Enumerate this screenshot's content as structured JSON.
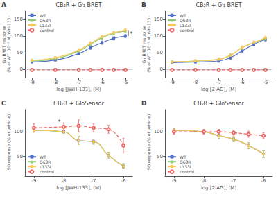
{
  "chart_data": [
    {
      "type": "line",
      "panel_label": "A",
      "title": "CB₂R + Gᴵ₁ BRET",
      "xlabel": "log [JWH-133], (M)",
      "ylabel": "Gᴵ₁ BRET response\n(% of WT, 10⁻⁵ M JWH-133)",
      "x": [
        -9,
        -8,
        -7,
        -6.5,
        -6,
        -5.5,
        -5
      ],
      "xlim": [
        -9.3,
        -4.7
      ],
      "xticks": [
        -9,
        -8,
        -7,
        -6,
        -5
      ],
      "ylim": [
        -25,
        175
      ],
      "yticks": [
        0,
        50,
        100,
        150
      ],
      "grid": false,
      "legend": "upper left",
      "hline": 0,
      "series": [
        {
          "name": "WT",
          "marker": "square",
          "line_style": "solid",
          "values": [
            22,
            28,
            47,
            65,
            80,
            93,
            100
          ],
          "errors": [
            3,
            3,
            4,
            5,
            5,
            5,
            5
          ]
        },
        {
          "name": "Q63R",
          "marker": "triangle",
          "line_style": "solid",
          "values": [
            25,
            32,
            55,
            75,
            95,
            108,
            115
          ],
          "errors": [
            4,
            3,
            4,
            5,
            5,
            5,
            5
          ]
        },
        {
          "name": "L133I",
          "marker": "circle",
          "line_style": "solid",
          "values": [
            27,
            35,
            58,
            78,
            98,
            110,
            118
          ],
          "errors": [
            4,
            3,
            4,
            5,
            5,
            5,
            5
          ]
        },
        {
          "name": "control",
          "marker": "open circle",
          "line_style": "dashed",
          "values": [
            -2,
            -2,
            -2,
            -2,
            -2,
            -2,
            -2
          ],
          "errors": [
            2,
            2,
            2,
            2,
            2,
            2,
            2
          ]
        }
      ],
      "annotations": [
        {
          "text": "*",
          "x": -4.82,
          "y": 107
        }
      ],
      "brackets": [
        {
          "x": -4.88,
          "y": [
            100,
            118
          ]
        }
      ]
    },
    {
      "type": "line",
      "panel_label": "B",
      "title": "CB₂R + Gᴵ₁ BRET",
      "xlabel": "log [2-AG], (M)",
      "ylabel": "Gᴵ₁ BRET response\n(% of WT, 10⁻⁵ M JWH-133)",
      "x": [
        -9,
        -8,
        -7,
        -6.5,
        -6,
        -5.5,
        -5
      ],
      "xlim": [
        -9.3,
        -4.7
      ],
      "xticks": [
        -9,
        -8,
        -7,
        -6,
        -5
      ],
      "ylim": [
        -25,
        175
      ],
      "yticks": [
        0,
        50,
        100,
        150
      ],
      "grid": false,
      "legend": "upper left",
      "hline": 0,
      "series": [
        {
          "name": "WT",
          "marker": "square",
          "line_style": "solid",
          "values": [
            20,
            22,
            25,
            35,
            55,
            75,
            90
          ],
          "errors": [
            3,
            3,
            4,
            5,
            5,
            5,
            5
          ]
        },
        {
          "name": "Q63R",
          "marker": "triangle",
          "line_style": "solid",
          "values": [
            22,
            25,
            30,
            42,
            65,
            80,
            92
          ],
          "errors": [
            4,
            4,
            4,
            5,
            5,
            5,
            5
          ]
        },
        {
          "name": "L133I",
          "marker": "circle",
          "line_style": "solid",
          "values": [
            22,
            25,
            30,
            42,
            65,
            80,
            95
          ],
          "errors": [
            4,
            4,
            4,
            5,
            5,
            5,
            5
          ]
        },
        {
          "name": "control",
          "marker": "open circle",
          "line_style": "dashed",
          "values": [
            -2,
            -2,
            -2,
            -2,
            -2,
            -2,
            -2
          ],
          "errors": [
            2,
            2,
            2,
            2,
            2,
            2,
            2
          ]
        }
      ]
    },
    {
      "type": "line",
      "panel_label": "C",
      "title": "CB₂R + GloSensor",
      "xlabel": "log [JWH-133], (M)",
      "ylabel": "ISO response (% of vehicle)",
      "x": [
        -9,
        -8,
        -7.5,
        -7,
        -6.5,
        -6
      ],
      "xlim": [
        -9.3,
        -5.7
      ],
      "xticks": [
        -9,
        -8,
        -7,
        -6
      ],
      "ylim": [
        10,
        145
      ],
      "yticks": [
        50,
        100
      ],
      "grid": false,
      "legend": "lower left",
      "series": [
        {
          "name": "WT",
          "marker": "square",
          "line_style": "solid",
          "values": [
            103,
            100,
            82,
            80,
            52,
            30
          ],
          "errors": [
            4,
            3,
            8,
            5,
            6,
            5
          ]
        },
        {
          "name": "Q63R",
          "marker": "triangle",
          "line_style": "solid",
          "values": [
            103,
            100,
            82,
            80,
            52,
            30
          ],
          "errors": [
            4,
            3,
            8,
            5,
            6,
            5
          ]
        },
        {
          "name": "L133I",
          "marker": "circle",
          "line_style": "solid",
          "values": [
            103,
            100,
            82,
            80,
            52,
            30
          ],
          "errors": [
            4,
            3,
            8,
            5,
            6,
            5
          ]
        },
        {
          "name": "control",
          "marker": "open circle",
          "line_style": "dashed",
          "values": [
            108,
            110,
            112,
            108,
            105,
            72
          ],
          "errors": [
            8,
            8,
            12,
            8,
            8,
            15
          ]
        }
      ],
      "annotations": [
        {
          "text": "*",
          "x": -8.2,
          "y": 120
        }
      ]
    },
    {
      "type": "line",
      "panel_label": "D",
      "title": "CB₂R + GloSensor",
      "xlabel": "log [2-AG], (M)",
      "ylabel": "ISO response (% of vehicle)",
      "x": [
        -9,
        -8,
        -7.5,
        -7,
        -6.5,
        -6
      ],
      "xlim": [
        -9.3,
        -5.7
      ],
      "xticks": [
        -9,
        -8,
        -7,
        -6
      ],
      "ylim": [
        10,
        145
      ],
      "yticks": [
        50,
        100
      ],
      "grid": false,
      "legend": "lower left",
      "series": [
        {
          "name": "WT",
          "marker": "square",
          "line_style": "solid",
          "values": [
            103,
            100,
            92,
            85,
            72,
            55
          ],
          "errors": [
            4,
            3,
            6,
            5,
            6,
            7
          ]
        },
        {
          "name": "Q63R",
          "marker": "triangle",
          "line_style": "solid",
          "values": [
            103,
            100,
            92,
            85,
            72,
            55
          ],
          "errors": [
            4,
            3,
            6,
            5,
            6,
            7
          ]
        },
        {
          "name": "L133I",
          "marker": "circle",
          "line_style": "solid",
          "values": [
            103,
            100,
            92,
            85,
            72,
            55
          ],
          "errors": [
            4,
            3,
            6,
            5,
            6,
            7
          ]
        },
        {
          "name": "control",
          "marker": "open circle",
          "line_style": "dashed",
          "values": [
            100,
            100,
            100,
            98,
            95,
            92
          ],
          "errors": [
            5,
            5,
            5,
            5,
            6,
            6
          ]
        }
      ]
    }
  ]
}
